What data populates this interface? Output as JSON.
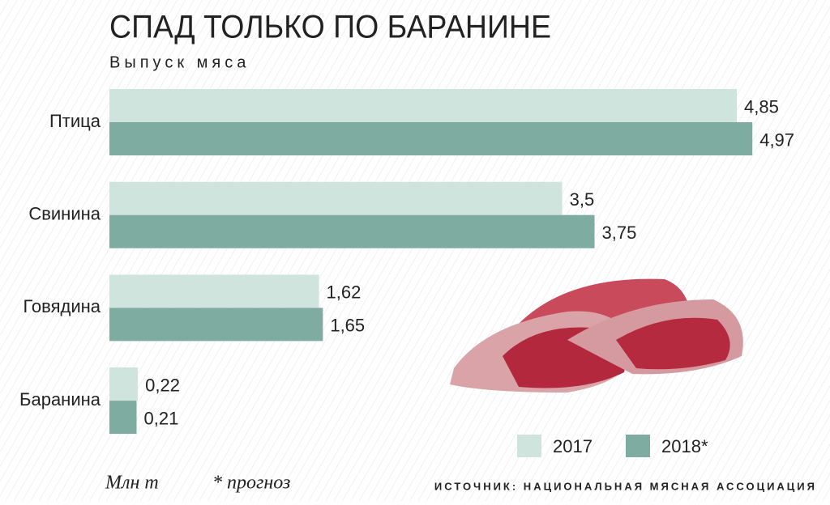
{
  "chart_data": {
    "type": "bar",
    "orientation": "horizontal",
    "title": "СПАД ТОЛЬКО ПО БАРАНИНЕ",
    "subtitle": "Выпуск мяса",
    "unit_label": "Млн т",
    "note": "* прогноз",
    "source": "ИСТОЧНИК: НАЦИОНАЛЬНАЯ МЯСНАЯ АССОЦИАЦИЯ",
    "categories": [
      "Птица",
      "Свинина",
      "Говядина",
      "Баранина"
    ],
    "series": [
      {
        "name": "2017",
        "color": "#cfe4dd",
        "values": [
          4.85,
          3.5,
          1.62,
          0.22
        ],
        "value_labels": [
          "4,85",
          "3,5",
          "1,62",
          "0,22"
        ]
      },
      {
        "name": "2018*",
        "color": "#7eaca1",
        "values": [
          4.97,
          3.75,
          1.65,
          0.21
        ],
        "value_labels": [
          "4,97",
          "3,75",
          "1,65",
          "0,21"
        ]
      }
    ]
  }
}
